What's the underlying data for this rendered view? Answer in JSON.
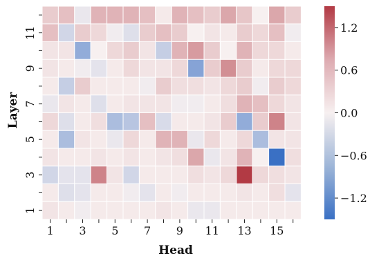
{
  "chart_data": {
    "type": "heatmap",
    "title": "",
    "xlabel": "Head",
    "ylabel": "Layer",
    "x_categories": [
      1,
      2,
      3,
      4,
      5,
      6,
      7,
      8,
      9,
      10,
      11,
      12,
      13,
      14,
      15,
      16
    ],
    "y_categories": [
      1,
      2,
      3,
      4,
      5,
      6,
      7,
      8,
      9,
      10,
      11,
      12
    ],
    "x_tick_labels": [
      "1",
      "3",
      "5",
      "7",
      "9",
      "11",
      "13",
      "15"
    ],
    "y_tick_labels": [
      "1",
      "3",
      "5",
      "7",
      "9",
      "11"
    ],
    "colorbar": {
      "range": [
        -1.5,
        1.5
      ],
      "ticks": [
        1.2,
        0.6,
        0.0,
        -0.6,
        -1.2
      ],
      "tick_labels": [
        "1.2",
        "0.6",
        "0.0",
        "−0.6",
        "−1.2"
      ],
      "colormap": "vlag",
      "low_color": "#3a70c4",
      "mid_color": "#f7f0f0",
      "high_color": "#b23a44"
    },
    "grid": true,
    "values_by_layer_top_to_bottom": {
      "12": [
        0.3,
        0.4,
        -0.1,
        0.5,
        0.5,
        0.5,
        0.4,
        0.05,
        0.5,
        0.4,
        0.3,
        0.6,
        0.35,
        0.0,
        0.6,
        0.3
      ],
      "11": [
        0.4,
        -0.3,
        0.3,
        0.2,
        -0.05,
        -0.2,
        0.3,
        0.4,
        0.3,
        0.0,
        0.1,
        0.05,
        0.3,
        0.2,
        0.4,
        -0.05
      ],
      "10": [
        0.1,
        0.1,
        -0.8,
        0.0,
        0.2,
        0.3,
        0.1,
        -0.4,
        0.5,
        0.7,
        0.3,
        0.0,
        0.5,
        0.2,
        0.2,
        0.05
      ],
      "9": [
        0.1,
        0.05,
        -0.05,
        -0.15,
        0.05,
        0.2,
        0.1,
        0.1,
        0.2,
        -0.9,
        0.3,
        0.8,
        0.3,
        0.05,
        0.2,
        0.2
      ],
      "8": [
        0.05,
        -0.4,
        0.3,
        0.05,
        0.05,
        0.05,
        -0.05,
        0.3,
        0.15,
        0.15,
        0.1,
        0.2,
        0.3,
        -0.05,
        0.3,
        0.2
      ],
      "7": [
        -0.1,
        0.1,
        0.05,
        -0.2,
        0.05,
        0.1,
        0.1,
        0.1,
        -0.05,
        -0.05,
        0.05,
        0.15,
        0.5,
        0.4,
        0.2,
        0.1
      ],
      "6": [
        0.2,
        -0.2,
        0.05,
        0.15,
        -0.6,
        -0.5,
        0.4,
        -0.25,
        0.05,
        0.05,
        0.1,
        0.3,
        -0.8,
        0.3,
        0.9,
        0.1
      ],
      "5": [
        0.05,
        -0.6,
        0.1,
        0.05,
        -0.1,
        0.2,
        0.05,
        0.5,
        0.5,
        -0.1,
        0.2,
        0.05,
        0.2,
        -0.6,
        0.1,
        0.1
      ],
      "4": [
        0.1,
        0.05,
        0.05,
        0.1,
        0.05,
        0.1,
        0.05,
        0.1,
        0.15,
        0.6,
        -0.1,
        0.1,
        0.5,
        0.0,
        -1.5,
        0.15
      ],
      "3": [
        -0.3,
        -0.15,
        -0.15,
        0.9,
        0.1,
        -0.3,
        0.05,
        0.05,
        0.05,
        0.15,
        0.1,
        0.2,
        1.5,
        0.2,
        0.15,
        0.1
      ],
      "2": [
        0.05,
        -0.2,
        -0.15,
        0.05,
        0.05,
        -0.05,
        -0.15,
        0.05,
        -0.05,
        0.05,
        0.05,
        0.05,
        0.1,
        0.05,
        0.15,
        -0.15
      ],
      "1": [
        0.1,
        0.05,
        -0.05,
        0.05,
        0.05,
        0.05,
        0.05,
        0.1,
        0.05,
        -0.1,
        -0.1,
        0.05,
        0.05,
        0.05,
        0.05,
        0.05
      ]
    }
  }
}
